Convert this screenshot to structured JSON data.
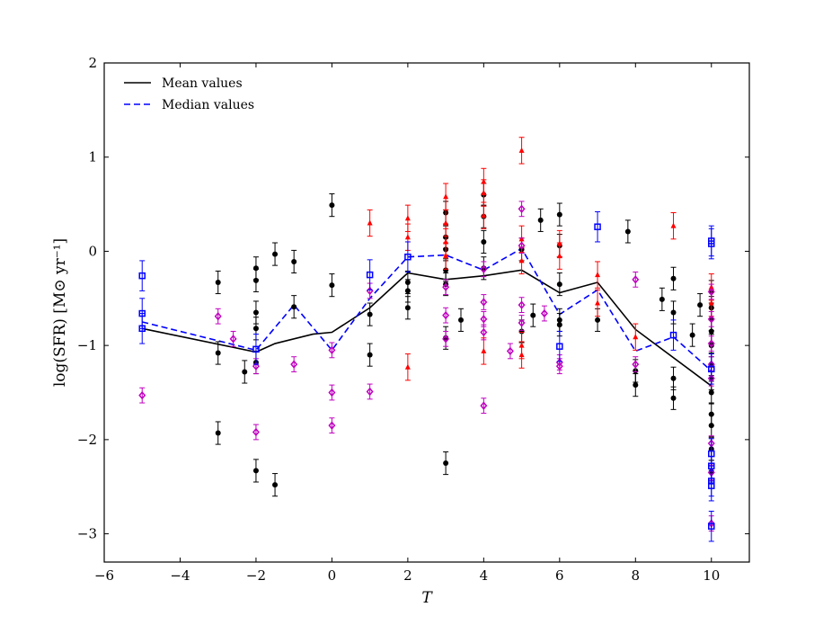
{
  "chart_data": {
    "type": "scatter",
    "xlabel": "T",
    "ylabel": "log(SFR) [M⊙ yr⁻¹]",
    "xlim": [
      -6,
      11
    ],
    "ylim": [
      -3.3,
      2
    ],
    "xticks": [
      -6,
      -4,
      -2,
      0,
      2,
      4,
      6,
      8,
      10
    ],
    "yticks": [
      -3,
      -2,
      -1,
      0,
      1,
      2
    ],
    "xtick_labels": [
      "−6",
      "−4",
      "−2",
      "0",
      "2",
      "4",
      "6",
      "8",
      "10"
    ],
    "ytick_labels": [
      "−3",
      "−2",
      "−1",
      "0",
      "1",
      "2"
    ],
    "grid": false,
    "legend_position": "top-left",
    "colors": {
      "black": "#000000",
      "red": "#ff0000",
      "magenta": "#c000c0",
      "blue": "#0000ff"
    },
    "series": [
      {
        "name": "Mean values",
        "style": "line-solid",
        "color": "#000000",
        "x": [
          -5,
          -2,
          -1.5,
          -0.5,
          0,
          1,
          2,
          3,
          4,
          5,
          6,
          7,
          8,
          10
        ],
        "y": [
          -0.82,
          -1.07,
          -0.98,
          -0.88,
          -0.86,
          -0.6,
          -0.23,
          -0.3,
          -0.26,
          -0.2,
          -0.44,
          -0.33,
          -0.83,
          -1.43
        ]
      },
      {
        "name": "Median values",
        "style": "line-dashed",
        "color": "#0000ff",
        "x": [
          -5,
          -2,
          -1,
          0,
          1,
          2,
          3,
          4,
          5,
          6,
          7,
          8,
          9,
          10
        ],
        "y": [
          -0.75,
          -1.05,
          -0.57,
          -1.05,
          -0.5,
          -0.06,
          -0.04,
          -0.2,
          0.03,
          -0.67,
          -0.41,
          -1.06,
          -0.91,
          -1.27
        ]
      },
      {
        "style": "points-circle",
        "color": "#000000",
        "err": 0.12,
        "points": [
          [
            -3,
            -0.33
          ],
          [
            -3,
            -1.08
          ],
          [
            -3,
            -1.93
          ],
          [
            -2.3,
            -1.28
          ],
          [
            -2,
            -0.18
          ],
          [
            -2,
            -0.31
          ],
          [
            -2,
            -0.65
          ],
          [
            -2,
            -0.82
          ],
          [
            -2,
            -1.18
          ],
          [
            -2,
            -2.33
          ],
          [
            -1.5,
            -0.03
          ],
          [
            -1.5,
            -2.48
          ],
          [
            -1,
            -0.11
          ],
          [
            -1,
            -0.59
          ],
          [
            0,
            0.49
          ],
          [
            0,
            -0.36
          ],
          [
            1,
            -0.67
          ],
          [
            1,
            -1.1
          ],
          [
            2,
            -0.33
          ],
          [
            2,
            -0.6
          ],
          [
            2,
            -0.42
          ],
          [
            3,
            0.41
          ],
          [
            3,
            0.15
          ],
          [
            3,
            0.02
          ],
          [
            3,
            -0.2
          ],
          [
            3,
            -0.35
          ],
          [
            3,
            -0.92
          ],
          [
            3,
            -2.25
          ],
          [
            3.4,
            -0.73
          ],
          [
            4,
            0.6
          ],
          [
            4,
            0.37
          ],
          [
            4,
            0.1
          ],
          [
            4,
            -0.18
          ],
          [
            5,
            0.02
          ],
          [
            5,
            -0.85
          ],
          [
            5.3,
            -0.68
          ],
          [
            5.5,
            0.33
          ],
          [
            6,
            0.39
          ],
          [
            6,
            0.06
          ],
          [
            6,
            -0.35
          ],
          [
            6,
            -0.73
          ],
          [
            6,
            -0.78
          ],
          [
            7,
            -0.73
          ],
          [
            7.8,
            0.21
          ],
          [
            8,
            -1.27
          ],
          [
            8,
            -1.42
          ],
          [
            8.7,
            -0.51
          ],
          [
            9,
            -0.29
          ],
          [
            9,
            -0.65
          ],
          [
            9,
            -1.35
          ],
          [
            9,
            -1.56
          ],
          [
            9.5,
            -0.89
          ],
          [
            9.7,
            -0.57
          ],
          [
            10,
            -0.43
          ],
          [
            10,
            -0.6
          ],
          [
            10,
            -0.72
          ],
          [
            10,
            -0.85
          ],
          [
            10,
            -1.0
          ],
          [
            10,
            -1.2
          ],
          [
            10,
            -1.35
          ],
          [
            10,
            -1.5
          ],
          [
            10,
            -1.73
          ],
          [
            10,
            -1.85
          ],
          [
            10,
            -2.1
          ],
          [
            10,
            -2.34
          ]
        ]
      },
      {
        "style": "points-triangle",
        "color": "#ff0000",
        "err": 0.14,
        "points": [
          [
            1,
            0.3
          ],
          [
            2,
            0.35
          ],
          [
            2,
            0.15
          ],
          [
            2,
            -1.23
          ],
          [
            3,
            0.58
          ],
          [
            3,
            0.3
          ],
          [
            3,
            0.1
          ],
          [
            3,
            -0.05
          ],
          [
            4,
            0.74
          ],
          [
            4,
            0.62
          ],
          [
            4,
            0.38
          ],
          [
            4,
            -1.06
          ],
          [
            5,
            1.07
          ],
          [
            5,
            0.13
          ],
          [
            5,
            -0.1
          ],
          [
            5,
            -1.0
          ],
          [
            5,
            -1.1
          ],
          [
            6,
            0.08
          ],
          [
            6,
            -0.05
          ],
          [
            7,
            -0.25
          ],
          [
            7,
            -0.55
          ],
          [
            8,
            -0.91
          ],
          [
            9,
            0.27
          ],
          [
            10,
            -0.38
          ],
          [
            10,
            -0.55
          ]
        ]
      },
      {
        "style": "points-diamond",
        "color": "#c000c0",
        "err": 0.08,
        "points": [
          [
            -5,
            -1.53
          ],
          [
            -3,
            -0.69
          ],
          [
            -2.6,
            -0.93
          ],
          [
            -2,
            -1.22
          ],
          [
            -2,
            -1.92
          ],
          [
            -1,
            -1.2
          ],
          [
            0,
            -1.05
          ],
          [
            0,
            -1.5
          ],
          [
            0,
            -1.85
          ],
          [
            1,
            -0.42
          ],
          [
            1,
            -1.49
          ],
          [
            3,
            -0.38
          ],
          [
            3,
            -0.68
          ],
          [
            3,
            -0.93
          ],
          [
            4,
            -0.19
          ],
          [
            4,
            -0.54
          ],
          [
            4,
            -0.72
          ],
          [
            4,
            -0.86
          ],
          [
            4,
            -1.64
          ],
          [
            4.7,
            -1.06
          ],
          [
            5,
            0.45
          ],
          [
            5,
            0.06
          ],
          [
            5,
            -0.57
          ],
          [
            5,
            -0.76
          ],
          [
            5.6,
            -0.66
          ],
          [
            6,
            -1.18
          ],
          [
            6,
            -1.22
          ],
          [
            8,
            -0.3
          ],
          [
            8,
            -1.2
          ],
          [
            10,
            -0.43
          ],
          [
            10,
            -0.72
          ],
          [
            10,
            -0.98
          ],
          [
            10,
            -1.2
          ],
          [
            10,
            -1.35
          ],
          [
            10,
            -2.04
          ],
          [
            10,
            -2.35
          ],
          [
            10,
            -2.89
          ]
        ]
      },
      {
        "style": "points-square",
        "color": "#0000ff",
        "err": 0.16,
        "points": [
          [
            -5,
            -0.26
          ],
          [
            -5,
            -0.66
          ],
          [
            -5,
            -0.82
          ],
          [
            -2,
            -1.04
          ],
          [
            1,
            -0.25
          ],
          [
            2,
            -0.06
          ],
          [
            6,
            -1.01
          ],
          [
            7,
            0.26
          ],
          [
            9,
            -0.89
          ],
          [
            10,
            0.11
          ],
          [
            10,
            0.08
          ],
          [
            10,
            -1.25
          ],
          [
            10,
            -2.15
          ],
          [
            10,
            -2.28
          ],
          [
            10,
            -2.44
          ],
          [
            10,
            -2.49
          ],
          [
            10,
            -2.92
          ]
        ]
      }
    ]
  }
}
